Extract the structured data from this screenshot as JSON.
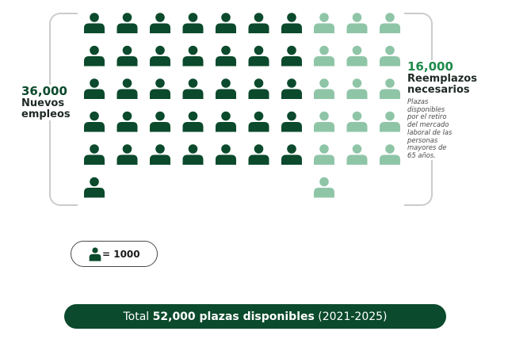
{
  "colors": {
    "dark_green": "#0b4a2c",
    "light_green": "#8fc5a7",
    "accent_green": "#1e8a4a",
    "bracket": "#c9cdca"
  },
  "chart_data": {
    "type": "pictogram",
    "unit_value": 1000,
    "series": [
      {
        "value": 36000,
        "number_label": "36,000",
        "label_line1": "Nuevos",
        "label_line2": "empleos",
        "icon_count": 36,
        "color": "#0b4a2c"
      },
      {
        "value": 16000,
        "number_label": "16,000",
        "label_line1": "Reemplazos",
        "label_line2": "necesarios",
        "note_lines": [
          "Plazas",
          "disponibles",
          "por el retiro",
          "del mercado",
          "laboral de las",
          "personas",
          "mayores de",
          "65 años."
        ],
        "icon_count": 16,
        "color": "#8fc5a7"
      }
    ]
  },
  "legend": {
    "icon": "person-icon",
    "text": "= 1000"
  },
  "total": {
    "prefix": "Total",
    "bold": "52,000 plazas disponibles",
    "suffix": "(2021-2025)"
  }
}
